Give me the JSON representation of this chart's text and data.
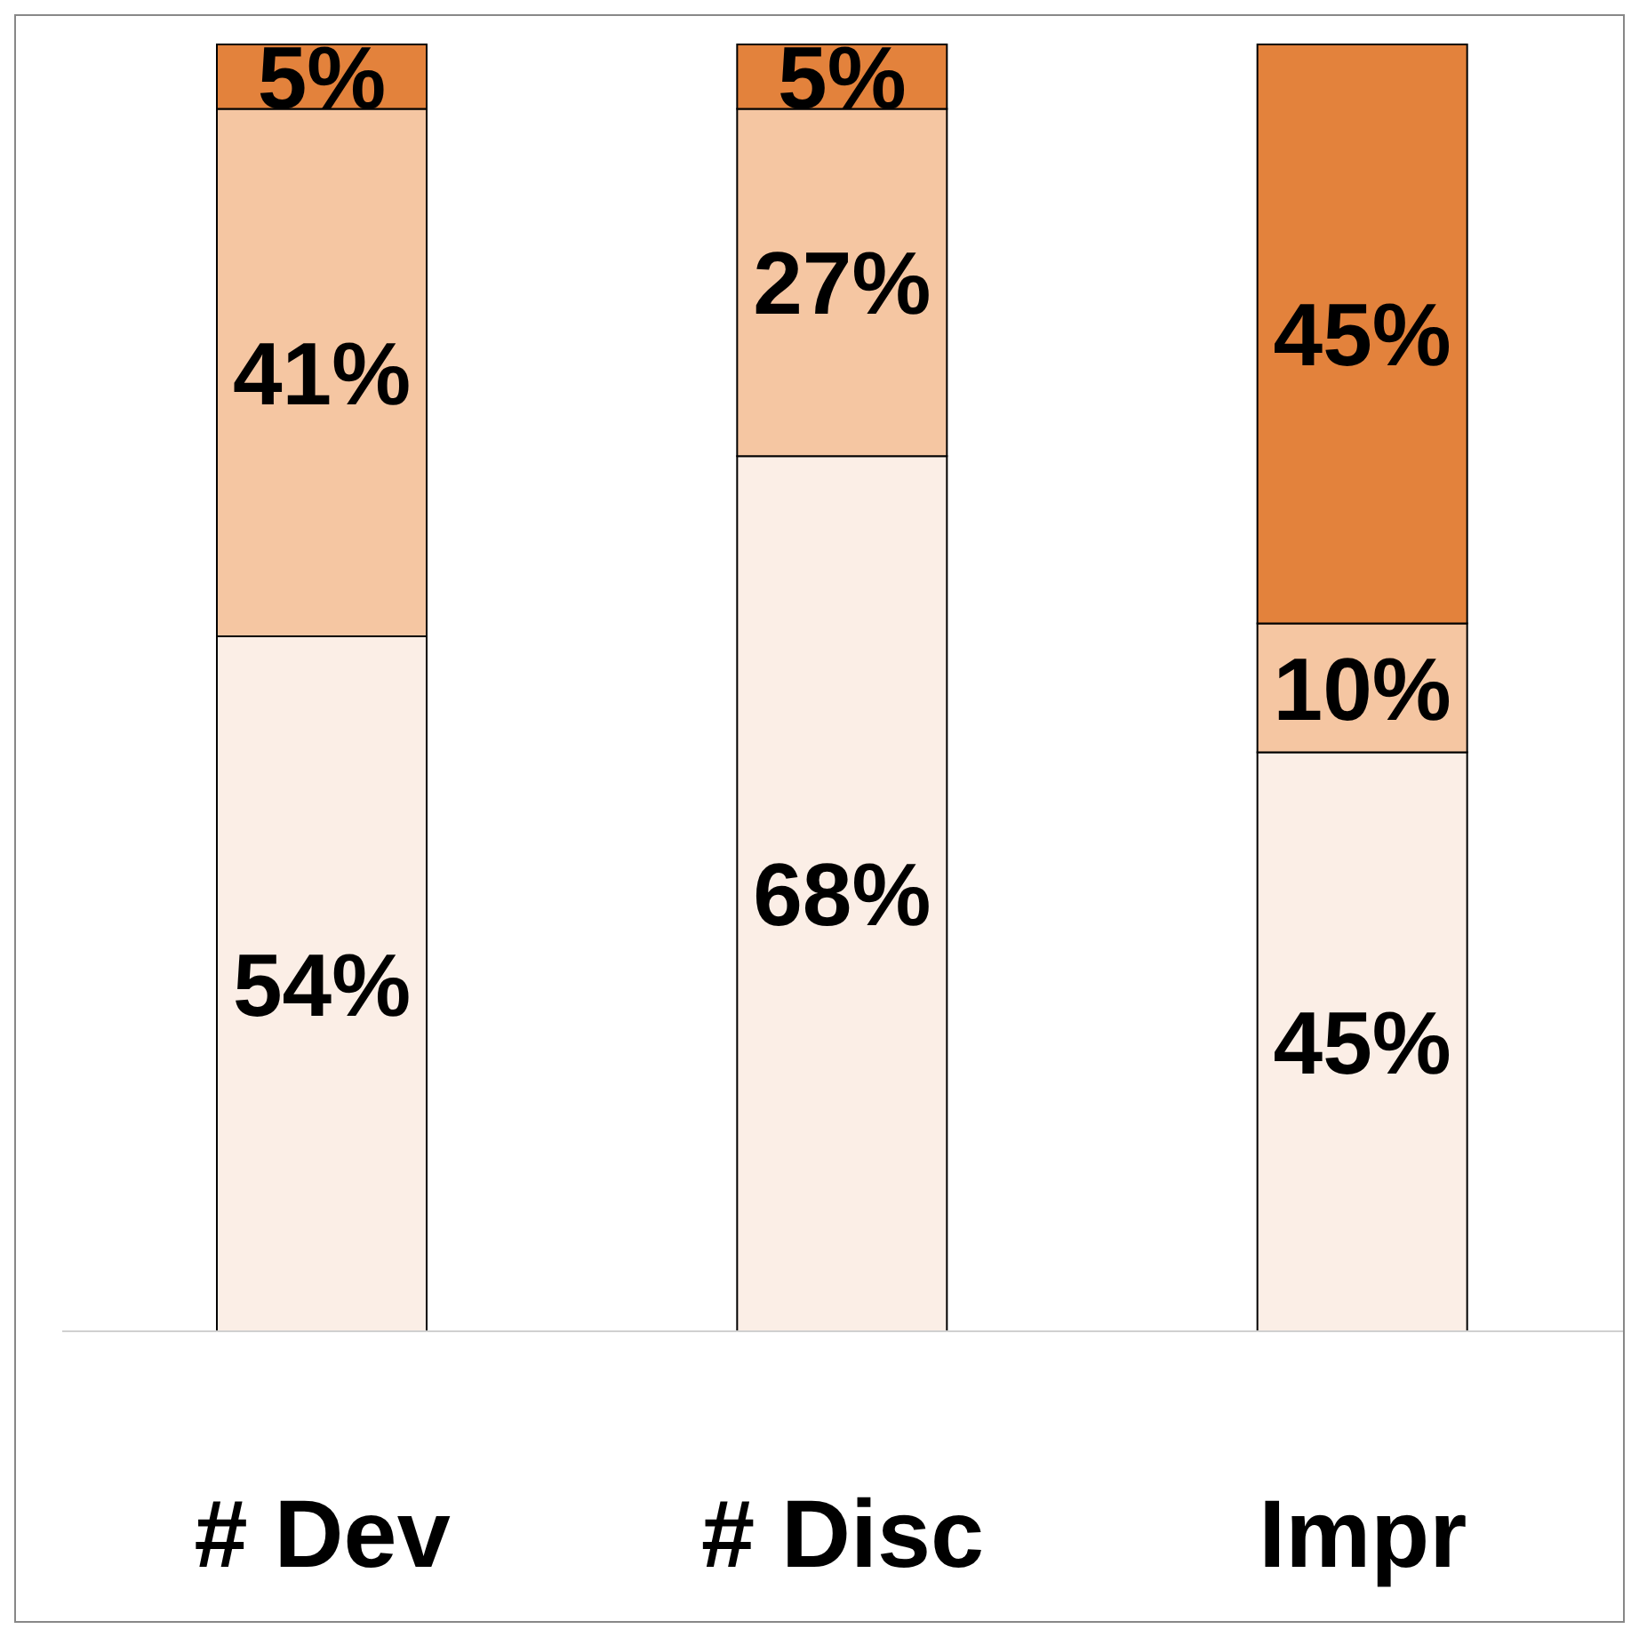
{
  "chart_data": {
    "type": "bar",
    "stacked": true,
    "categories": [
      "# Dev",
      "# Disc",
      "Impr"
    ],
    "series": [
      {
        "color": "#fbeee6",
        "values": [
          54,
          68,
          45
        ],
        "value_labels": [
          "54%",
          "68%",
          "45%"
        ]
      },
      {
        "color": "#f5c6a2",
        "values": [
          41,
          27,
          10
        ],
        "value_labels": [
          "41%",
          "27%",
          "10%"
        ]
      },
      {
        "color": "#e3823c",
        "values": [
          5,
          5,
          45
        ],
        "value_labels": [
          "5%",
          "5%",
          "45%"
        ]
      }
    ],
    "legend": false,
    "grid": false
  }
}
